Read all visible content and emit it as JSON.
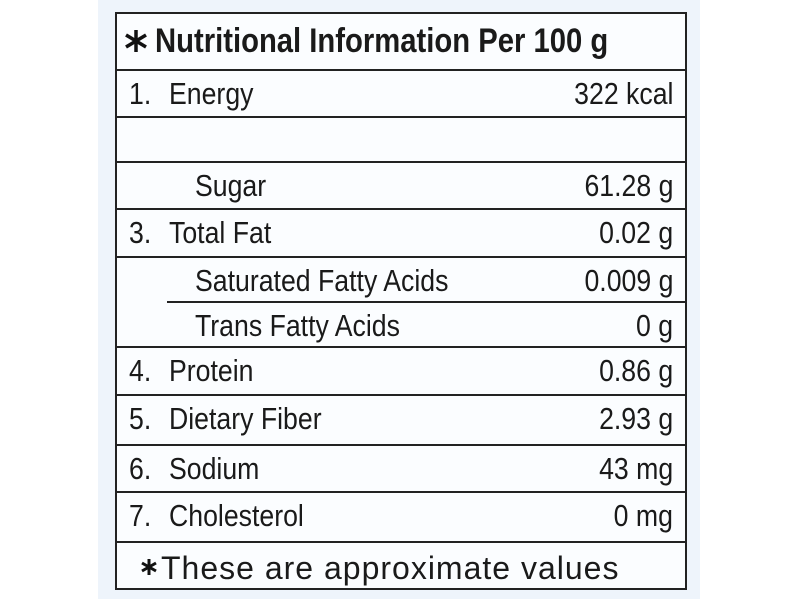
{
  "header": {
    "title": "Nutritional Information Per 100 g"
  },
  "table": {
    "rows": [
      {
        "number": "1.",
        "label": "Energy",
        "value": "322 kcal"
      },
      {
        "label": "Sugar",
        "value": "61.28 g",
        "indent": true
      },
      {
        "number": "3.",
        "label": "Total Fat",
        "value": "0.02 g"
      },
      {
        "label": "Saturated Fatty Acids",
        "value": "0.009 g",
        "indent": true
      },
      {
        "label": "Trans Fatty Acids",
        "value": "0 g",
        "indent": true
      },
      {
        "number": "4.",
        "label": "Protein",
        "value": "0.86 g"
      },
      {
        "number": "5.",
        "label": "Dietary Fiber",
        "value": "2.93 g"
      },
      {
        "number": "6.",
        "label": "Sodium",
        "value": "43 mg"
      },
      {
        "number": "7.",
        "label": "Cholesterol",
        "value": "0 mg"
      }
    ]
  },
  "footer": {
    "note": "These are approximate values"
  }
}
